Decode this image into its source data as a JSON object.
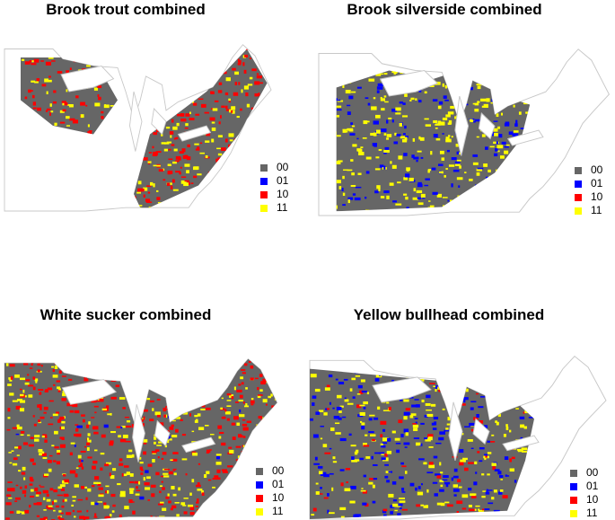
{
  "panels": [
    {
      "title": "Brook trout combined",
      "legend": [
        {
          "label": "00",
          "color": "#666666"
        },
        {
          "label": "01",
          "color": "#0000ff"
        },
        {
          "label": "10",
          "color": "#ff0000"
        },
        {
          "label": "11",
          "color": "#ffff00"
        }
      ]
    },
    {
      "title": "Brook silverside combined",
      "legend": [
        {
          "label": "00",
          "color": "#666666"
        },
        {
          "label": "01",
          "color": "#0000ff"
        },
        {
          "label": "10",
          "color": "#ff0000"
        },
        {
          "label": "11",
          "color": "#ffff00"
        }
      ]
    },
    {
      "title": "White sucker combined",
      "legend": [
        {
          "label": "00",
          "color": "#666666"
        },
        {
          "label": "01",
          "color": "#0000ff"
        },
        {
          "label": "10",
          "color": "#ff0000"
        },
        {
          "label": "11",
          "color": "#ffff00"
        }
      ]
    },
    {
      "title": "Yellow bullhead combined",
      "legend": [
        {
          "label": "00",
          "color": "#666666"
        },
        {
          "label": "01",
          "color": "#0000ff"
        },
        {
          "label": "10",
          "color": "#ff0000"
        },
        {
          "label": "11",
          "color": "#ffff00"
        }
      ]
    }
  ]
}
